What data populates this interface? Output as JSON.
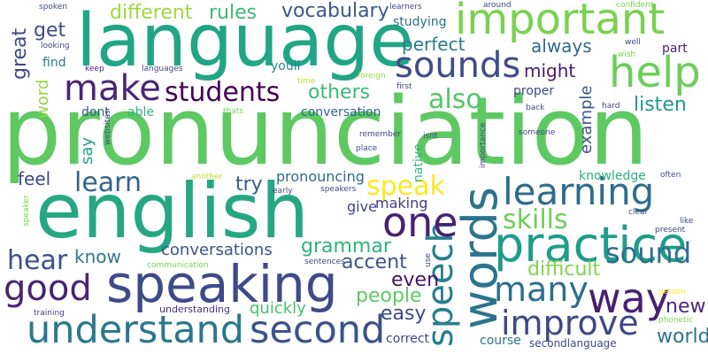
{
  "words": {
    "pronunciation": {
      "text": "pronunciation",
      "color": "#5ec962"
    },
    "language": {
      "text": "language",
      "color": "#21a685"
    },
    "english": {
      "text": "english",
      "color": "#26a784"
    },
    "important": {
      "text": "important",
      "color": "#7ad151"
    },
    "speaking": {
      "text": "speaking",
      "color": "#3e4a89"
    },
    "words": {
      "text": "words",
      "color": "#2c738e"
    },
    "practice": {
      "text": "practice",
      "color": "#1f9d8a"
    },
    "understand": {
      "text": "understand",
      "color": "#2a788e"
    },
    "second": {
      "text": "second",
      "color": "#3b528b"
    },
    "sounds": {
      "text": "sounds",
      "color": "#3e4c8a"
    },
    "learning": {
      "text": "learning",
      "color": "#2f6c8e"
    },
    "help": {
      "text": "help",
      "color": "#6ccd5a"
    },
    "make": {
      "text": "make",
      "color": "#482677"
    },
    "speech": {
      "text": "speech",
      "color": "#277f8e"
    },
    "good": {
      "text": "good",
      "color": "#482475"
    },
    "improve": {
      "text": "improve",
      "color": "#3f4889"
    },
    "many": {
      "text": "many",
      "color": "#2e6e8e"
    },
    "one": {
      "text": "one",
      "color": "#482173"
    },
    "way": {
      "text": "way",
      "color": "#482071"
    },
    "students": {
      "text": "students",
      "color": "#440154"
    },
    "sound": {
      "text": "sound",
      "color": "#2d708e"
    },
    "hear": {
      "text": "hear",
      "color": "#3b518b"
    },
    "learn": {
      "text": "learn",
      "color": "#33638d"
    },
    "speak": {
      "text": "speak",
      "color": "#fde725"
    },
    "skills": {
      "text": "skills",
      "color": "#6ece58"
    },
    "also": {
      "text": "also",
      "color": "#54c568"
    },
    "different": {
      "text": "different",
      "color": "#9bd93c"
    },
    "rules": {
      "text": "rules",
      "color": "#3aba76"
    },
    "vocabulary": {
      "text": "vocabulary",
      "color": "#38588c"
    },
    "get": {
      "text": "get",
      "color": "#3e4a89"
    },
    "great": {
      "text": "great",
      "color": "#3f4788"
    },
    "word": {
      "text": "word",
      "color": "#8fd744"
    },
    "perfect": {
      "text": "perfect",
      "color": "#2a788e"
    },
    "always": {
      "text": "always",
      "color": "#31678e"
    },
    "might": {
      "text": "might",
      "color": "#481a6c"
    },
    "others": {
      "text": "others",
      "color": "#3aba76"
    },
    "listen": {
      "text": "listen",
      "color": "#1f988b"
    },
    "grammar": {
      "text": "grammar",
      "color": "#2eb37c"
    },
    "conversations": {
      "text": "conversations",
      "color": "#3a548c"
    },
    "accent": {
      "text": "accent",
      "color": "#3b528b"
    },
    "difficult": {
      "text": "difficult",
      "color": "#7fd34e"
    },
    "people": {
      "text": "people",
      "color": "#5ec962"
    },
    "even": {
      "text": "even",
      "color": "#481467"
    },
    "easy": {
      "text": "easy",
      "color": "#3f4889"
    },
    "new": {
      "text": "new",
      "color": "#482878"
    },
    "world": {
      "text": "world",
      "color": "#2c728e"
    },
    "quickly": {
      "text": "quickly",
      "color": "#46c06f"
    },
    "know": {
      "text": "know",
      "color": "#2a788e"
    },
    "feel": {
      "text": "feel",
      "color": "#3f4788"
    },
    "try": {
      "text": "try",
      "color": "#375b8d"
    },
    "pronouncing": {
      "text": "pronouncing",
      "color": "#30698e"
    },
    "give": {
      "text": "give",
      "color": "#404588"
    },
    "making": {
      "text": "making",
      "color": "#433e85"
    },
    "say": {
      "text": "say",
      "color": "#1fa188"
    },
    "example": {
      "text": "example",
      "color": "#3b528b"
    },
    "knowledge": {
      "text": "knowledge",
      "color": "#29af7f"
    },
    "conversation": {
      "text": "conversation",
      "color": "#33638d"
    },
    "studying": {
      "text": "studying",
      "color": "#2d708e"
    },
    "proper": {
      "text": "proper",
      "color": "#3e4a89"
    },
    "part": {
      "text": "part",
      "color": "#482173"
    },
    "youll": {
      "text": "youll",
      "color": "#24868e"
    },
    "dont": {
      "text": "dont",
      "color": "#39568c"
    },
    "able": {
      "text": "able",
      "color": "#2eb37c"
    },
    "find": {
      "text": "find",
      "color": "#2a788e"
    },
    "course": {
      "text": "course",
      "color": "#2c728e"
    },
    "correct": {
      "text": "correct",
      "color": "#3f4788"
    },
    "understanding": {
      "text": "understanding",
      "color": "#46337e"
    },
    "secondlanguage": {
      "text": "secondlanguage",
      "color": "#3f4788"
    },
    "native": {
      "text": "native",
      "color": "#35b779"
    },
    "importance": {
      "text": "importance",
      "color": "#3f4788"
    },
    "spoken": {
      "text": "spoken",
      "color": "#3f4788"
    },
    "looking": {
      "text": "looking",
      "color": "#3f4788"
    },
    "keep": {
      "text": "keep",
      "color": "#482878"
    },
    "languages": {
      "text": "languages",
      "color": "#3f4788"
    },
    "time": {
      "text": "time",
      "color": "#bddf26"
    },
    "foreign": {
      "text": "foreign",
      "color": "#9bd93c"
    },
    "first": {
      "text": "first",
      "color": "#3f4788"
    },
    "learners": {
      "text": "learners",
      "color": "#3f4788"
    },
    "around": {
      "text": "around",
      "color": "#3f4788"
    },
    "confident": {
      "text": "confident",
      "color": "#7ad151"
    },
    "well": {
      "text": "well",
      "color": "#3f4788"
    },
    "wish": {
      "text": "wish",
      "color": "#7ad151"
    },
    "back": {
      "text": "back",
      "color": "#3f4788"
    },
    "hard": {
      "text": "hard",
      "color": "#3f4788"
    },
    "websites": {
      "text": "websites",
      "color": "#3f4788"
    },
    "thats": {
      "text": "thats",
      "color": "#7ad151"
    },
    "remember": {
      "text": "remember",
      "color": "#3f4788"
    },
    "isnt": {
      "text": "isnt",
      "color": "#3f4788"
    },
    "place": {
      "text": "place",
      "color": "#3f4788"
    },
    "someone": {
      "text": "someone",
      "color": "#3f4788"
    },
    "often": {
      "text": "often",
      "color": "#3f4788"
    },
    "another": {
      "text": "another",
      "color": "#bddf26"
    },
    "early": {
      "text": "early",
      "color": "#3f4788"
    },
    "speakers": {
      "text": "speakers",
      "color": "#3f4788"
    },
    "speaker": {
      "text": "speaker",
      "color": "#7ad151"
    },
    "clear": {
      "text": "clear",
      "color": "#3f4788"
    },
    "like": {
      "text": "like",
      "color": "#3f4788"
    },
    "present": {
      "text": "present",
      "color": "#3f4788"
    },
    "communication": {
      "text": "communication",
      "color": "#7ad151"
    },
    "sentences": {
      "text": "sentences",
      "color": "#3f4788"
    },
    "use": {
      "text": "use",
      "color": "#3f4788"
    },
    "training": {
      "text": "training",
      "color": "#3f4788"
    },
    "person": {
      "text": "person",
      "color": "#fde725"
    },
    "phonetic": {
      "text": "phonetic",
      "color": "#7ad151"
    }
  }
}
